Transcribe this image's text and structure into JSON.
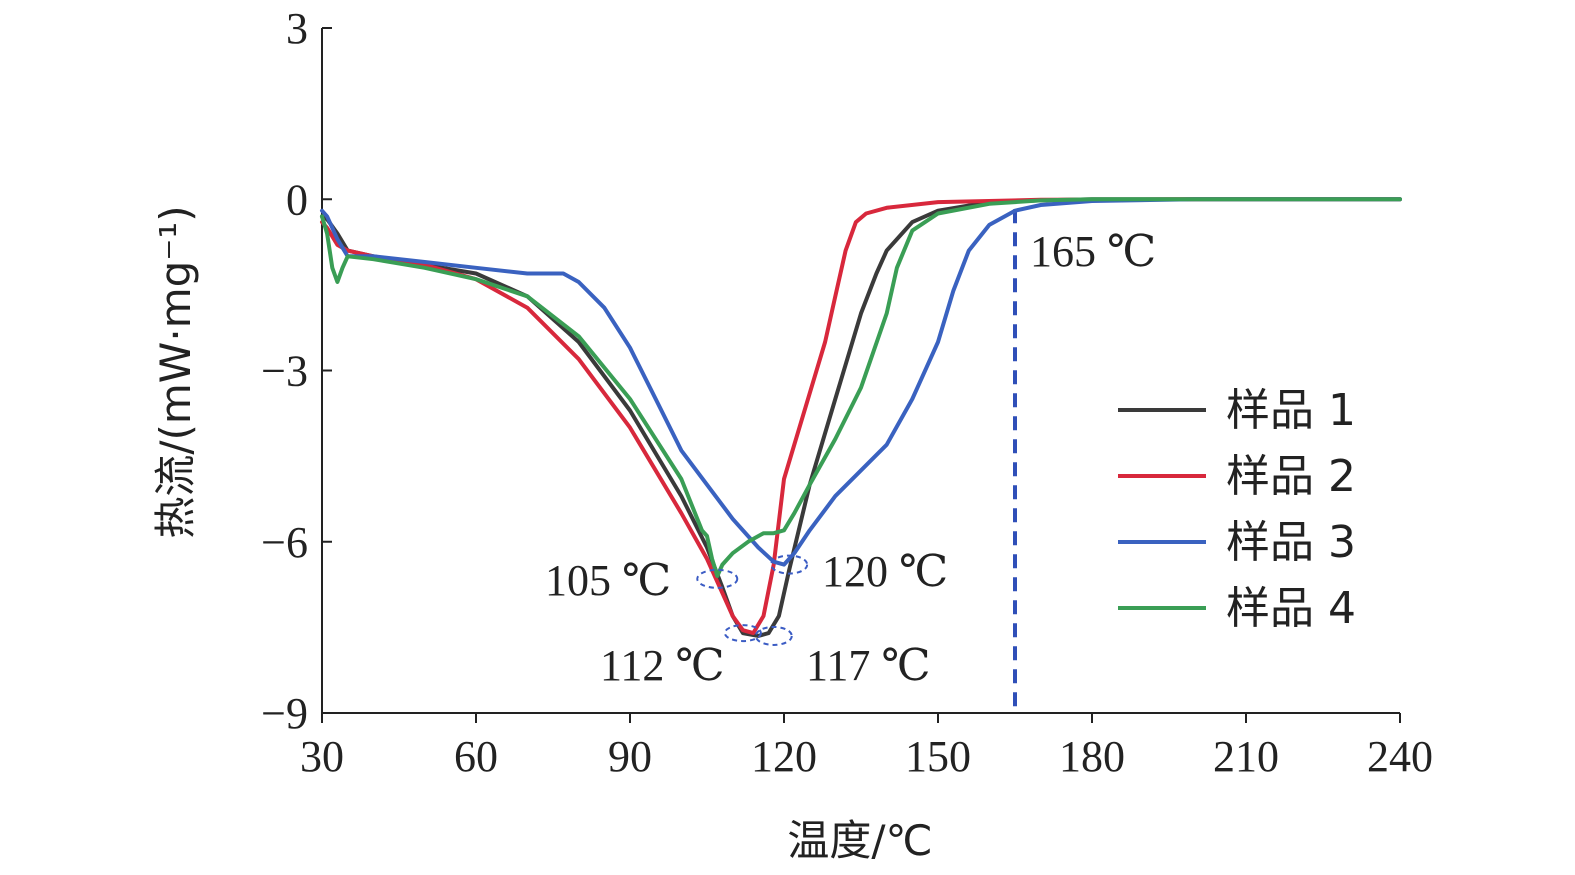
{
  "chart_data": {
    "type": "line",
    "xlabel": "温度/℃",
    "ylabel": "热流/(mW·mg⁻¹)",
    "xlim": [
      30,
      240
    ],
    "ylim": [
      -9,
      3
    ],
    "xticks": [
      30,
      60,
      90,
      120,
      150,
      180,
      210,
      240
    ],
    "yticks": [
      3,
      0,
      -3,
      -6,
      -9
    ],
    "ytick_labels": [
      "3",
      "0",
      "−3",
      "−6",
      "−9"
    ],
    "legend_position": "right",
    "series": [
      {
        "name": "样品 1",
        "color": "#3a3a3a",
        "x": [
          30,
          31,
          33,
          35,
          40,
          50,
          60,
          70,
          80,
          90,
          100,
          105,
          108,
          110,
          112,
          115,
          117,
          119,
          121,
          125,
          130,
          135,
          138,
          140,
          145,
          150,
          160,
          170,
          180,
          200,
          240
        ],
        "y": [
          -0.3,
          -0.35,
          -0.6,
          -0.9,
          -1.0,
          -1.15,
          -1.3,
          -1.7,
          -2.5,
          -3.7,
          -5.2,
          -6.1,
          -6.8,
          -7.3,
          -7.6,
          -7.65,
          -7.6,
          -7.3,
          -6.5,
          -5.0,
          -3.5,
          -2.0,
          -1.3,
          -0.9,
          -0.4,
          -0.2,
          -0.05,
          -0.02,
          0,
          0,
          0
        ]
      },
      {
        "name": "样品 2",
        "color": "#d8283c",
        "x": [
          30,
          31,
          33,
          35,
          40,
          50,
          60,
          70,
          80,
          90,
          100,
          105,
          108,
          110,
          112,
          114,
          116,
          118,
          120,
          125,
          128,
          130,
          132,
          134,
          136,
          140,
          150,
          170,
          200,
          240
        ],
        "y": [
          -0.4,
          -0.5,
          -0.8,
          -0.9,
          -1.0,
          -1.15,
          -1.4,
          -1.9,
          -2.8,
          -4.0,
          -5.5,
          -6.3,
          -6.9,
          -7.3,
          -7.55,
          -7.6,
          -7.3,
          -6.4,
          -4.9,
          -3.4,
          -2.5,
          -1.7,
          -0.9,
          -0.4,
          -0.25,
          -0.15,
          -0.05,
          -0.01,
          0,
          0
        ]
      },
      {
        "name": "样品 3",
        "color": "#3a62c0",
        "x": [
          30,
          31,
          33,
          35,
          40,
          50,
          60,
          70,
          77,
          80,
          85,
          90,
          95,
          100,
          105,
          110,
          115,
          118,
          120,
          122,
          125,
          130,
          140,
          145,
          150,
          153,
          156,
          160,
          165,
          170,
          180,
          200,
          240
        ],
        "y": [
          -0.2,
          -0.3,
          -0.7,
          -1.0,
          -1.0,
          -1.1,
          -1.2,
          -1.3,
          -1.3,
          -1.45,
          -1.9,
          -2.6,
          -3.5,
          -4.4,
          -5.0,
          -5.6,
          -6.1,
          -6.35,
          -6.4,
          -6.2,
          -5.8,
          -5.2,
          -4.3,
          -3.5,
          -2.5,
          -1.6,
          -0.9,
          -0.45,
          -0.2,
          -0.1,
          -0.03,
          0,
          0
        ]
      },
      {
        "name": "样品 4",
        "color": "#3a9e55",
        "x": [
          30,
          31,
          32,
          33,
          34,
          35,
          40,
          50,
          60,
          70,
          80,
          90,
          100,
          104,
          105,
          106,
          107,
          108,
          110,
          113,
          116,
          118,
          120,
          122,
          125,
          130,
          135,
          140,
          142,
          145,
          150,
          160,
          170,
          180,
          200,
          240
        ],
        "y": [
          -0.3,
          -0.6,
          -1.2,
          -1.45,
          -1.2,
          -1.0,
          -1.05,
          -1.2,
          -1.4,
          -1.7,
          -2.4,
          -3.5,
          -4.9,
          -5.8,
          -5.9,
          -6.3,
          -6.6,
          -6.4,
          -6.2,
          -6.0,
          -5.85,
          -5.85,
          -5.8,
          -5.5,
          -5.0,
          -4.2,
          -3.3,
          -2.0,
          -1.2,
          -0.55,
          -0.25,
          -0.08,
          -0.02,
          0,
          0,
          0
        ]
      }
    ],
    "annotations": [
      {
        "text": "105 ℃",
        "x": 105
      },
      {
        "text": "112 ℃",
        "x": 112
      },
      {
        "text": "117 ℃",
        "x": 117
      },
      {
        "text": "120 ℃",
        "x": 120
      },
      {
        "text": "165 ℃",
        "x": 165
      }
    ],
    "reference_line": {
      "x": 165,
      "color": "#2f4fb8"
    }
  }
}
